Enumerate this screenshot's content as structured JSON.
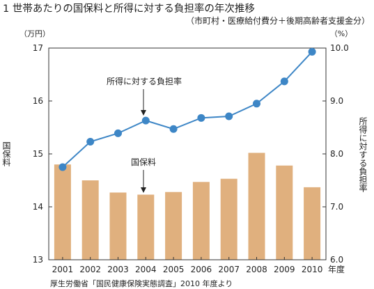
{
  "title": "1 世帯あたりの国保料と所得に対する負担率の年次推移",
  "subtitle": "（市町村・医療給付費分＋後期高齢者支援金分）",
  "source": "厚生労働省「国民健康保険実態調査」2010 年度より",
  "chart_data": {
    "type": "bar+line",
    "x": [
      "2001",
      "2002",
      "2003",
      "2004",
      "2005",
      "2006",
      "2007",
      "2008",
      "2009",
      "2010"
    ],
    "x_suffix": "年度",
    "left_axis": {
      "label": "国保料",
      "unit": "（万円）",
      "min": 13,
      "max": 17,
      "ticks": [
        "13",
        "14",
        "15",
        "16",
        "17"
      ]
    },
    "right_axis": {
      "label": "所得に対する負担率",
      "unit": "（%）",
      "min": 6.0,
      "max": 10.0,
      "ticks": [
        "6.0",
        "7.0",
        "8.0",
        "9.0",
        "10.0"
      ]
    },
    "series": [
      {
        "name": "国保料",
        "type": "bar",
        "axis": "left",
        "color": "#e0b07e",
        "values": [
          14.8,
          14.5,
          14.27,
          14.23,
          14.28,
          14.47,
          14.53,
          15.02,
          14.78,
          14.37
        ]
      },
      {
        "name": "所得に対する負担率",
        "type": "line",
        "axis": "right",
        "color": "#3d86c6",
        "values": [
          7.75,
          8.23,
          8.39,
          8.63,
          8.47,
          8.68,
          8.71,
          8.95,
          9.37,
          9.93
        ]
      }
    ],
    "grid": false
  }
}
